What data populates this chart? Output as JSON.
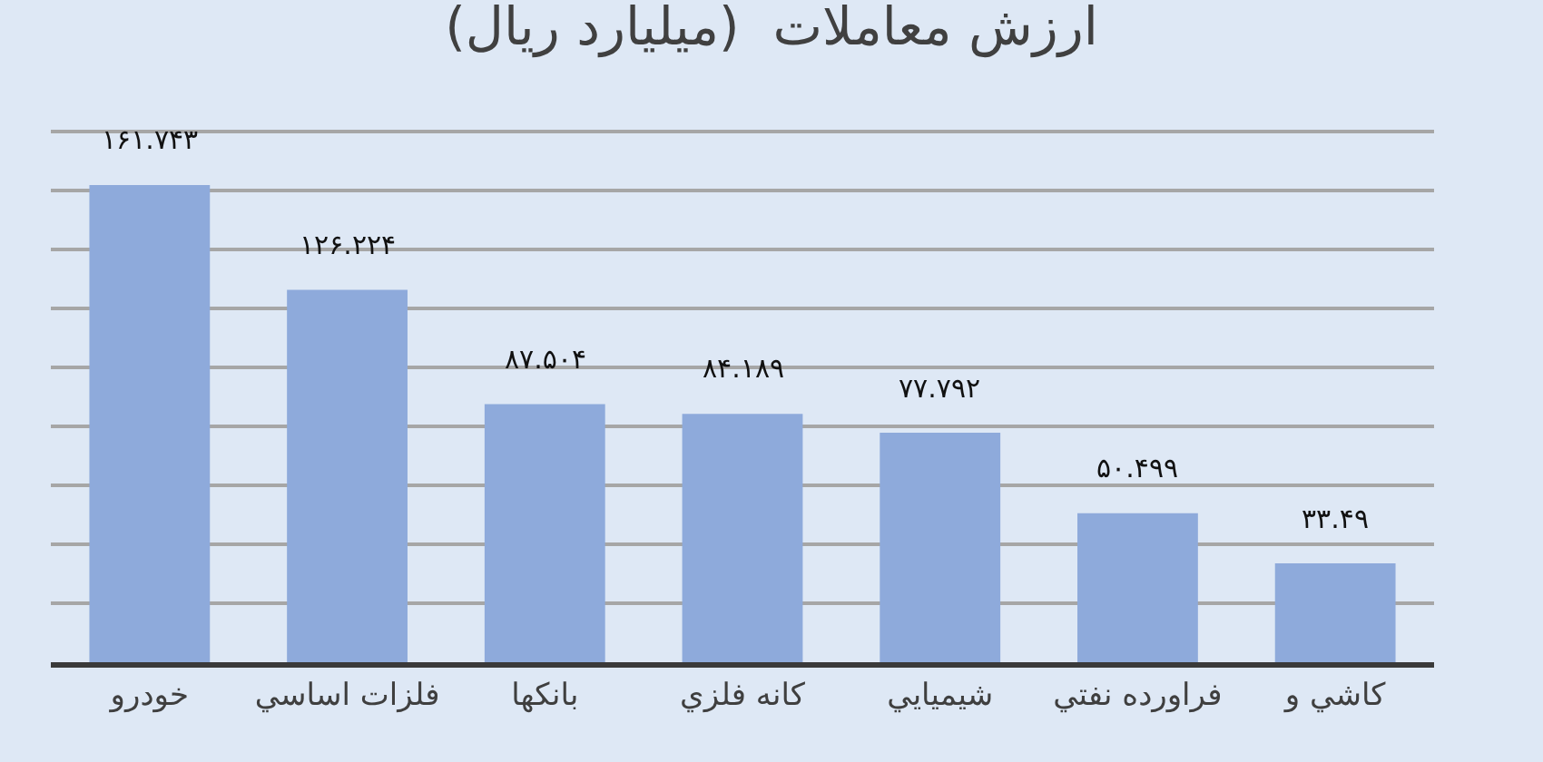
{
  "chart_data": {
    "type": "bar",
    "title": "ارزش معاملات  (میلیارد ریال)",
    "categories": [
      "خودرو",
      "فلزات اساسي",
      "بانکها",
      "کانه فلزي",
      "شيميايي",
      "فراورده نفتي",
      "کاشي و"
    ],
    "values": [
      161.743,
      126.224,
      87.504,
      84.189,
      77.792,
      50.499,
      33.49
    ],
    "value_labels": [
      "۱۶۱.۷۴۳",
      "۱۲۶.۲۲۴",
      "۸۷.۵۰۴",
      "۸۴.۱۸۹",
      "۷۷.۷۹۲",
      "۵۰.۴۹۹",
      "۳۳.۴۹"
    ],
    "color": "#8eaadb",
    "grid": "y",
    "tick_labels": "x"
  }
}
